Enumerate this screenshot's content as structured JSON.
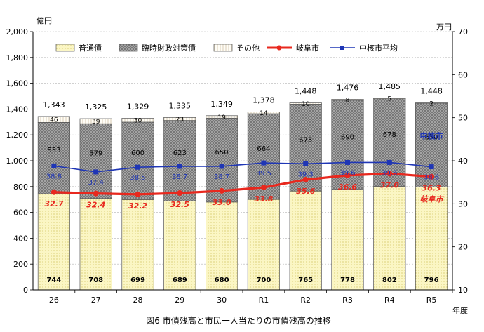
{
  "chart_data": {
    "type": "bar",
    "title": "図6 市債残高と市民一人当たりの市債残高の推移",
    "left_unit": "億円",
    "right_unit": "万円",
    "x_axis_title": "年度",
    "categories": [
      "26",
      "27",
      "28",
      "29",
      "30",
      "R1",
      "R2",
      "R3",
      "R4",
      "R5"
    ],
    "ylim": [
      0,
      2000
    ],
    "yticks": [
      0,
      200,
      400,
      600,
      800,
      1000,
      1200,
      1400,
      1600,
      1800,
      2000
    ],
    "ytick_labels": [
      "0",
      "200",
      "400",
      "600",
      "800",
      "1,000",
      "1,200",
      "1,400",
      "1,600",
      "1,800",
      "2,000"
    ],
    "y2lim": [
      10,
      70
    ],
    "y2ticks": [
      10,
      20,
      30,
      40,
      50,
      60,
      70
    ],
    "y2tick_labels": [
      "10",
      "20",
      "30",
      "40",
      "50",
      "60",
      "70"
    ],
    "bar_series": [
      {
        "name": "普通債",
        "color": "#f7f1a8",
        "values": [
          744,
          708,
          699,
          689,
          680,
          700,
          765,
          778,
          802,
          796
        ]
      },
      {
        "name": "臨時財政対策債",
        "color": "#9c9c9c",
        "values": [
          553,
          579,
          600,
          623,
          650,
          664,
          673,
          690,
          678,
          650
        ]
      },
      {
        "name": "その他",
        "color": "#fdf8ef",
        "values": [
          46,
          39,
          30,
          23,
          19,
          14,
          10,
          8,
          5,
          2
        ]
      }
    ],
    "totals": [
      "1,343",
      "1,325",
      "1,329",
      "1,335",
      "1,349",
      "1,378",
      "1,448",
      "1,476",
      "1,485",
      "1,448"
    ],
    "line_series": [
      {
        "name": "岐阜市",
        "color": "#e8281e",
        "values": [
          32.7,
          32.4,
          32.2,
          32.5,
          33.0,
          33.8,
          35.6,
          36.6,
          37.0,
          36.3
        ]
      },
      {
        "name": "中核市平均",
        "color": "#1f36b5",
        "values": [
          38.8,
          37.4,
          38.5,
          38.7,
          38.7,
          39.5,
          39.3,
          39.6,
          39.6,
          38.6
        ]
      }
    ],
    "series_end_labels": [
      "岐阜市",
      "中核市"
    ],
    "legend_position": "top",
    "grid": true
  }
}
